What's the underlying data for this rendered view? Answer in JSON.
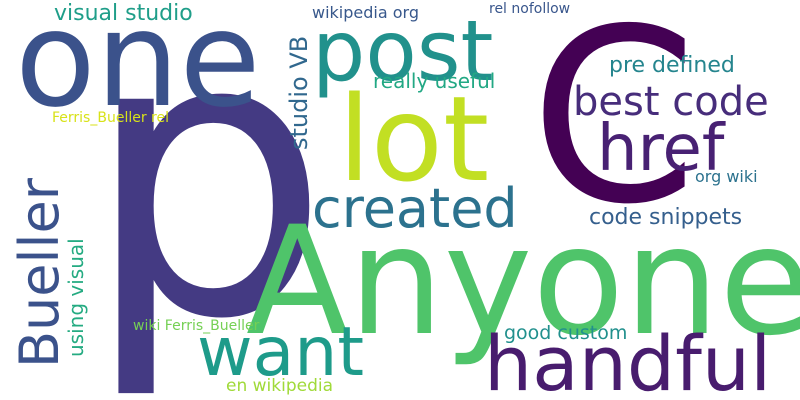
{
  "word_cloud": {
    "words": [
      {
        "text": "p",
        "color": "#443a83"
      },
      {
        "text": "C",
        "color": "#440154"
      },
      {
        "text": "Anyone",
        "color": "#4fc46a"
      },
      {
        "text": "one",
        "color": "#3b528b"
      },
      {
        "text": "lot",
        "color": "#c2df23"
      },
      {
        "text": "post",
        "color": "#21918c"
      },
      {
        "text": "href",
        "color": "#482173"
      },
      {
        "text": "best code",
        "color": "#472d7b"
      },
      {
        "text": "created",
        "color": "#2c728e"
      },
      {
        "text": "want",
        "color": "#1e9b8a"
      },
      {
        "text": "handful",
        "color": "#481c6e"
      },
      {
        "text": "Bueller",
        "color": "#3b528b"
      },
      {
        "text": "visual studio",
        "color": "#1f9e89"
      },
      {
        "text": "studio VB",
        "color": "#31688e"
      },
      {
        "text": "really useful",
        "color": "#22a884"
      },
      {
        "text": "pre defined",
        "color": "#25858e"
      },
      {
        "text": "code snippets",
        "color": "#355f8d"
      },
      {
        "text": "org wiki",
        "color": "#2c728e"
      },
      {
        "text": "wikipedia org",
        "color": "#38588c"
      },
      {
        "text": "rel nofollow",
        "color": "#39568c"
      },
      {
        "text": "Ferris_Bueller rel",
        "color": "#d8e219"
      },
      {
        "text": "using visual",
        "color": "#25ab82"
      },
      {
        "text": "wiki Ferris_Bueller",
        "color": "#75d054"
      },
      {
        "text": "good custom",
        "color": "#21908d"
      },
      {
        "text": "en wikipedia",
        "color": "#a0da39"
      }
    ]
  }
}
